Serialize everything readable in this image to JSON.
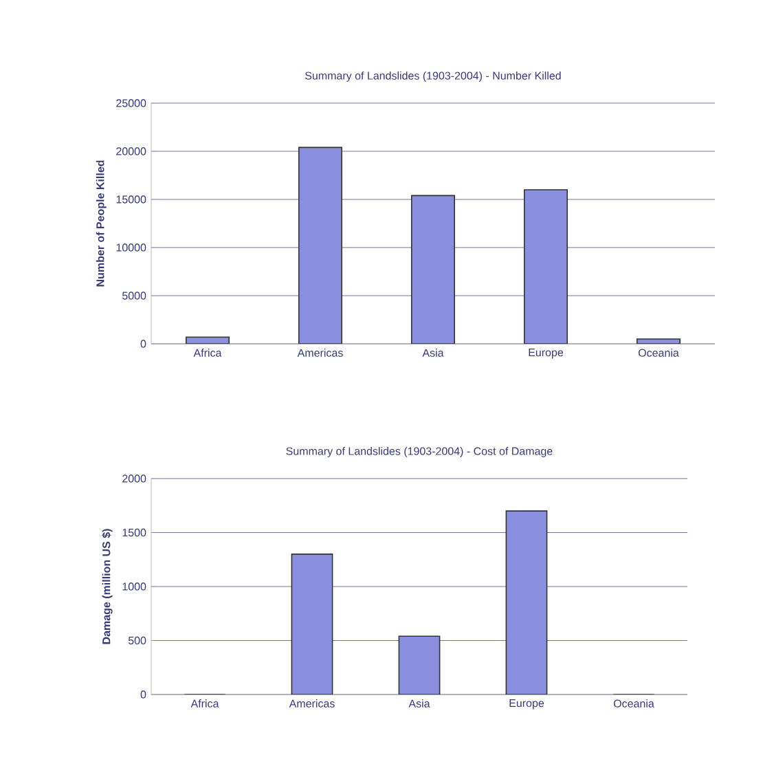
{
  "chart_data": [
    {
      "type": "bar",
      "title": "Summary of Landslides (1903-2004) - Number Killed",
      "ylabel": "Number of People Killed",
      "categories": [
        "Africa",
        "Americas",
        "Asia",
        "Europe",
        "Oceania"
      ],
      "values": [
        700,
        20400,
        15400,
        16000,
        500
      ],
      "color": "#8a8fe0",
      "ylim": [
        0,
        25000
      ],
      "yticks": [
        0,
        5000,
        10000,
        15000,
        20000,
        25000
      ],
      "grid": "y"
    },
    {
      "type": "bar",
      "title": "Summary of Landslides (1903-2004) - Cost of Damage",
      "ylabel": "Damage (million US $)",
      "categories": [
        "Africa",
        "Americas",
        "Asia",
        "Europe",
        "Oceania"
      ],
      "values": [
        0,
        1300,
        540,
        1700,
        0
      ],
      "color": "#8a8fe0",
      "ylim": [
        0,
        2000
      ],
      "yticks": [
        0,
        500,
        1000,
        1500,
        2000
      ],
      "grid": "y"
    }
  ]
}
